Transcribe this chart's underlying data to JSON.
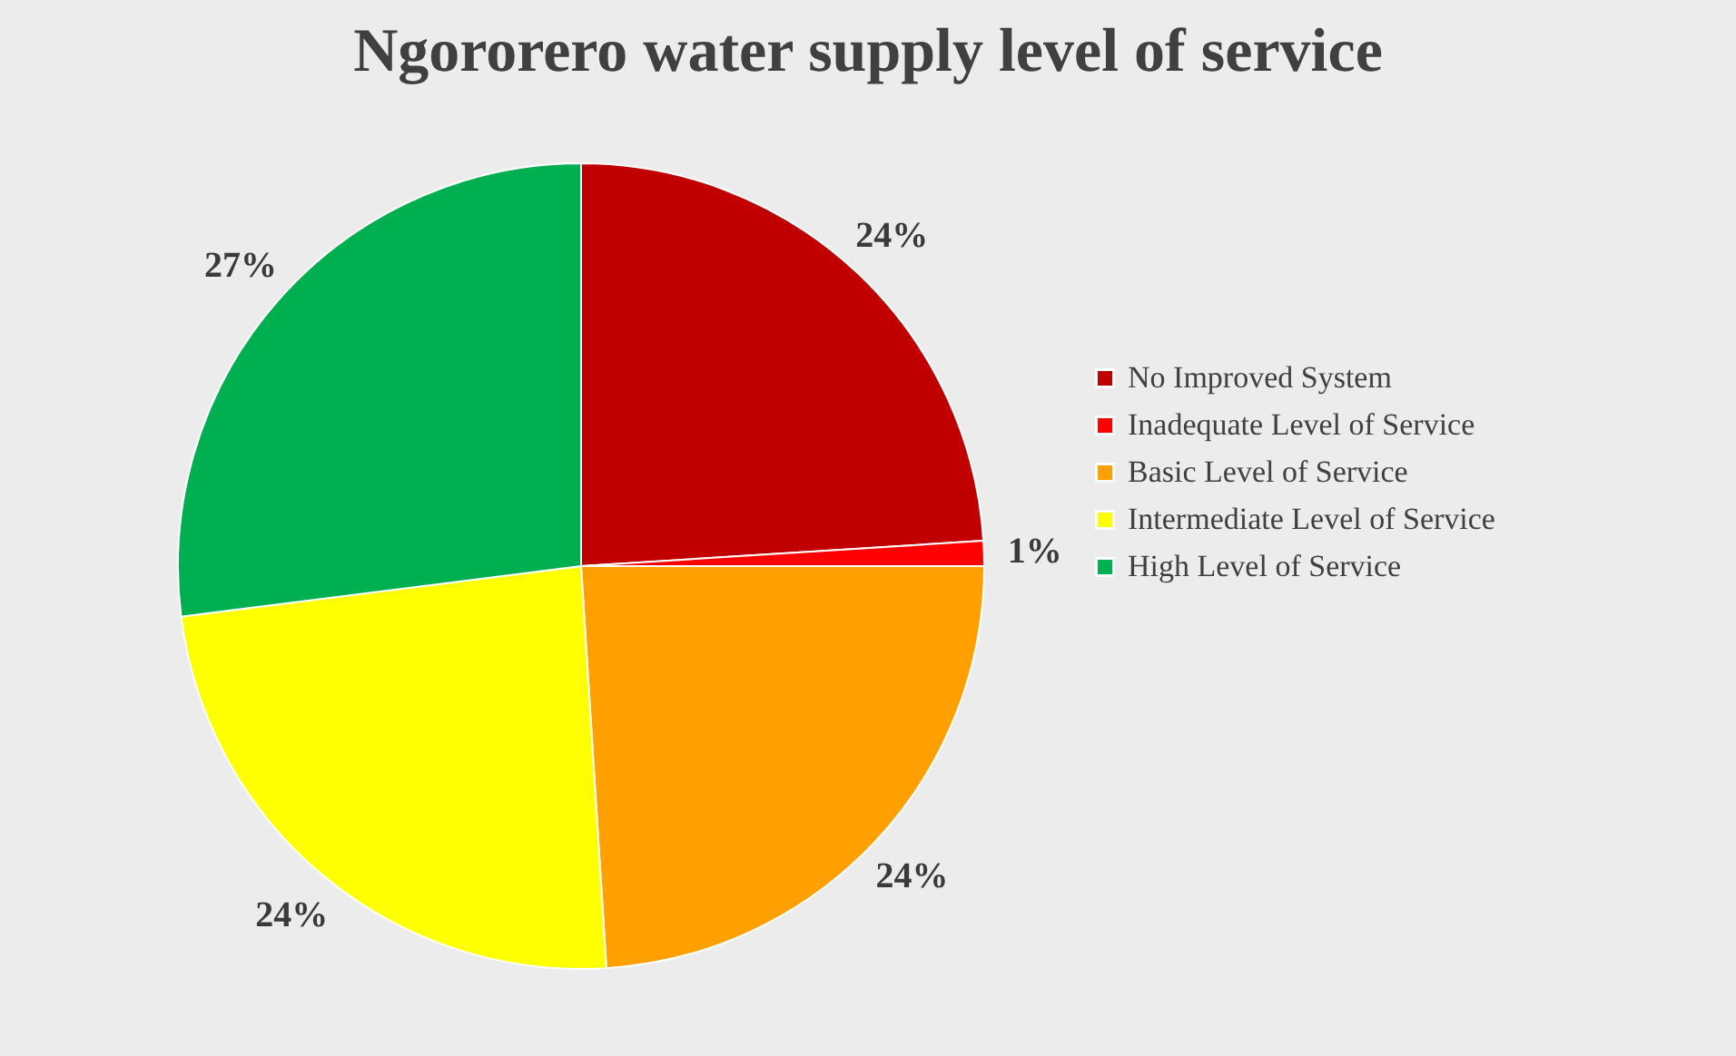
{
  "chart_data": {
    "type": "pie",
    "title": "Ngororero water supply level of service",
    "categories": [
      "No Improved System",
      "Inadequate Level of Service",
      "Basic Level of Service",
      "Intermediate Level of Service",
      "High Level of Service"
    ],
    "values": [
      24,
      1,
      24,
      24,
      27
    ],
    "value_labels": [
      "24%",
      "1%",
      "24%",
      "24%",
      "27%"
    ],
    "colors": [
      "#c00000",
      "#ff0000",
      "#ffa000",
      "#ffff00",
      "#00b050"
    ],
    "legend": "right"
  }
}
